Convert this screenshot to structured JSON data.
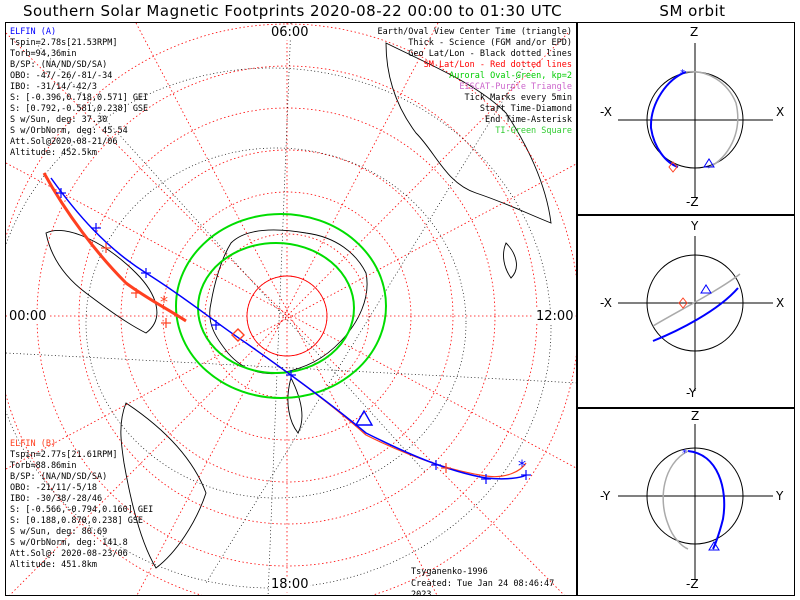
{
  "title": "Southern Solar Magnetic Footprints 2020-08-22 00:00 to 01:30 UTC",
  "orbit_title": "SM orbit",
  "map_labels": {
    "top": "06:00",
    "bottom": "18:00",
    "left": "00:00",
    "right": "12:00"
  },
  "elfin_a": {
    "color": "#0000ff",
    "lines": [
      "ELFIN (A)",
      "Tspin=2.78s[21.53RPM]",
      "Torb=94.36min",
      "B/SP: (NA/ND/SD/SA)",
      "OBO: -47/-26/-81/-34",
      "IBO: -31/14/-42/3",
      "S: [-0.396,0.718,0.571] GEI",
      "S: [0.792,-0.581,0.238] GSE",
      "S w/Sun, deg: 37.30",
      "S w/OrbNorm, deg: 45.54",
      "Att.Sol@2020-08-21/06",
      "Altitude: 452.5km"
    ]
  },
  "elfin_b": {
    "color": "#ff4020",
    "lines": [
      "ELFIN (B)",
      "Tspin=2.77s[21.61RPM]",
      "Torb=88.86min",
      "B/SP: (NA/ND/SD/SA)",
      "OBO: -21/11/-5/18",
      "IBO: -30/38/-28/46",
      "S: [-0.566,-0.794,0.160] GEI",
      "S: [0.188,0.870,0.238] GSE",
      "S w/Sun, deg: 80.69",
      "S w/OrbNorm, deg: 141.8",
      "Att.Sol@: 2020-08-23/06",
      "Altitude: 451.8km"
    ]
  },
  "legend": [
    {
      "text": "Earth/Oval View Center Time (triangle)",
      "color": "#000000"
    },
    {
      "text": "Thick - Science (FGM and/or EPD)",
      "color": "#000000"
    },
    {
      "text": "Geo Lat/Lon - Black dotted lines",
      "color": "#000000"
    },
    {
      "text": "SM Lat/Lon - Red dotted lines",
      "color": "#ff0000"
    },
    {
      "text": "Auroral Oval-Green, kp=2",
      "color": "#00cc00"
    },
    {
      "text": "EISCAT-Purple Triangle",
      "color": "#cc66cc"
    },
    {
      "text": "Tick Marks every 5min",
      "color": "#000000"
    },
    {
      "text": "Start Time-Diamond",
      "color": "#000000"
    },
    {
      "text": "End Time-Asterisk",
      "color": "#000000"
    },
    {
      "text": "TI-Green Square",
      "color": "#33cc33"
    }
  ],
  "credit": {
    "author": "Tsyganenko-1996",
    "created": "Created: Tue Jan 24 08:46:47 2023"
  },
  "orbit_panels": [
    {
      "top": "Z",
      "bottom": "-Z",
      "left": "-X",
      "right": "X"
    },
    {
      "top": "Y",
      "bottom": "-Y",
      "left": "-X",
      "right": "X"
    },
    {
      "top": "Z",
      "bottom": "-Z",
      "left": "-Y",
      "right": "Y"
    }
  ],
  "chart_data": {
    "type": "polar-map",
    "hemisphere": "south",
    "time_range": "2020-08-22 00:00 to 01:30 UTC",
    "mlt_labels": [
      "00:00",
      "06:00",
      "12:00",
      "18:00"
    ],
    "series": [
      {
        "name": "ELFIN (A)",
        "color": "#0000ff"
      },
      {
        "name": "ELFIN (B)",
        "color": "#ff4020"
      }
    ],
    "auroral_oval_kp": 2
  }
}
